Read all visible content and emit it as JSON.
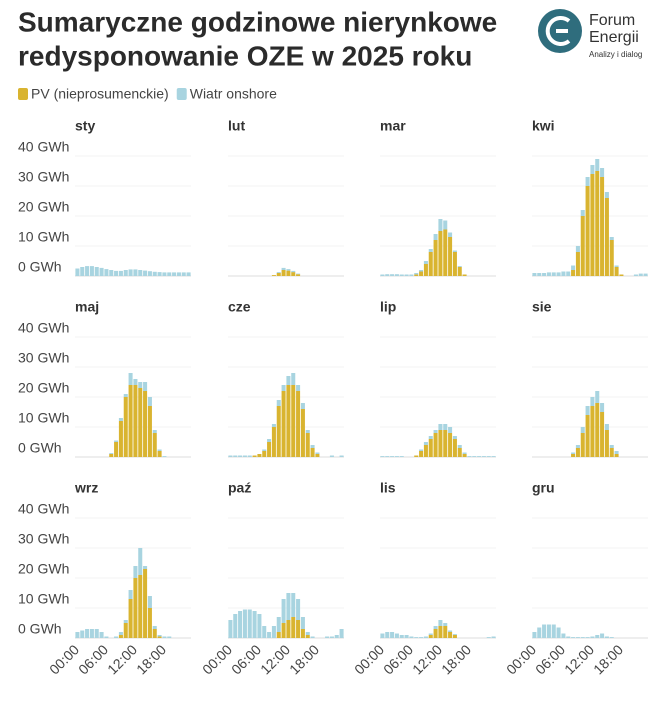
{
  "logo": [
    "Forum",
    "Energii",
    "Analizy i dialog"
  ],
  "chart_data": {
    "type": "bar",
    "stacked": true,
    "title": [
      "Sumaryczne godzinowe nierynkowe",
      "redysponowanie OZE w 2025 roku"
    ],
    "series": [
      {
        "name": "PV (nieprosumenckie)",
        "color": "#d9b430"
      },
      {
        "name": "Wiatr onshore",
        "color": "#a8d4e0"
      }
    ],
    "categories": [
      "00:00",
      null,
      null,
      null,
      null,
      null,
      "06:00",
      null,
      null,
      null,
      null,
      null,
      "12:00",
      null,
      null,
      null,
      null,
      null,
      "18:00",
      null,
      null,
      null,
      null,
      null
    ],
    "ylim": [
      0,
      40
    ],
    "yticks": [
      {
        "value": 0,
        "label": "0 GWh"
      },
      {
        "value": 10,
        "label": "10 GWh"
      },
      {
        "value": 20,
        "label": "20 GWh"
      },
      {
        "value": 30,
        "label": "30 GWh"
      },
      {
        "value": 40,
        "label": "40 GWh"
      }
    ],
    "panels": [
      {
        "title": "sty",
        "series": [
          {
            "values": [
              0,
              0,
              0,
              0,
              0,
              0,
              0,
              0,
              0,
              0,
              0,
              0,
              0,
              0,
              0,
              0,
              0,
              0,
              0,
              0,
              0,
              0,
              0,
              0
            ]
          },
          {
            "values": [
              2.5,
              3,
              3.3,
              3.3,
              3,
              2.7,
              2.3,
              2,
              1.7,
              1.7,
              2,
              2.2,
              2.2,
              2,
              1.8,
              1.6,
              1.4,
              1.3,
              1.2,
              1.2,
              1.2,
              1.2,
              1.2,
              1.2
            ]
          }
        ]
      },
      {
        "title": "lut",
        "series": [
          {
            "values": [
              0,
              0,
              0,
              0,
              0,
              0,
              0,
              0,
              0,
              0.3,
              1,
              2,
              1.8,
              1.3,
              0.6,
              0,
              0,
              0,
              0,
              0,
              0,
              0,
              0,
              0
            ]
          },
          {
            "values": [
              0,
              0,
              0,
              0,
              0,
              0,
              0,
              0,
              0,
              0,
              0.3,
              0.7,
              0.5,
              0.4,
              0.2,
              0,
              0,
              0,
              0,
              0,
              0,
              0,
              0,
              0
            ]
          }
        ]
      },
      {
        "title": "mar",
        "series": [
          {
            "values": [
              0,
              0,
              0,
              0,
              0,
              0,
              0,
              0.5,
              1.5,
              4,
              8,
              12,
              15,
              15.5,
              13,
              8,
              3,
              0.5,
              0,
              0,
              0,
              0,
              0,
              0
            ]
          },
          {
            "values": [
              0.5,
              0.6,
              0.6,
              0.6,
              0.5,
              0.5,
              0.5,
              0.5,
              0.5,
              1,
              1,
              2,
              4,
              3,
              1.5,
              0.5,
              0.3,
              0,
              0,
              0,
              0,
              0,
              0,
              0
            ]
          }
        ]
      },
      {
        "title": "kwi",
        "series": [
          {
            "values": [
              0,
              0,
              0,
              0,
              0,
              0,
              0,
              0,
              2,
              8,
              20,
              30,
              34,
              35,
              33,
              26,
              12,
              3,
              0.5,
              0,
              0,
              0,
              0,
              0
            ]
          },
          {
            "values": [
              1,
              1,
              1,
              1.2,
              1.2,
              1.2,
              1.5,
              1.5,
              1.5,
              2,
              2,
              3,
              3,
              4,
              3,
              2,
              1,
              0.5,
              0,
              0,
              0,
              0.5,
              0.8,
              0.8
            ]
          }
        ]
      },
      {
        "title": "maj",
        "series": [
          {
            "values": [
              0,
              0,
              0,
              0,
              0,
              0,
              0,
              1,
              5,
              12,
              20,
              24,
              24,
              23,
              22,
              17,
              8,
              2,
              0,
              0,
              0,
              0,
              0,
              0
            ]
          },
          {
            "values": [
              0,
              0,
              0,
              0,
              0,
              0,
              0,
              0.3,
              0.5,
              1,
              1,
              4,
              2,
              2,
              3,
              3,
              1,
              0.5,
              0.3,
              0,
              0,
              0,
              0,
              0
            ]
          }
        ]
      },
      {
        "title": "cze",
        "series": [
          {
            "values": [
              0,
              0,
              0,
              0,
              0,
              0.5,
              1,
              2,
              5,
              10,
              17,
              22,
              24,
              24,
              22,
              16,
              8,
              3,
              1,
              0,
              0,
              0,
              0,
              0
            ]
          },
          {
            "values": [
              0.5,
              0.5,
              0.5,
              0.5,
              0.5,
              0,
              0,
              0.5,
              1,
              1,
              2,
              2,
              3,
              4,
              2,
              2,
              1,
              1,
              0.5,
              0,
              0,
              0.5,
              0,
              0.5
            ]
          }
        ]
      },
      {
        "title": "lip",
        "series": [
          {
            "values": [
              0,
              0,
              0,
              0,
              0,
              0,
              0,
              0.5,
              2,
              4,
              6,
              8,
              9,
              9,
              8,
              6,
              3,
              1,
              0,
              0,
              0,
              0,
              0,
              0
            ]
          },
          {
            "values": [
              0.3,
              0.3,
              0.3,
              0.3,
              0.3,
              0,
              0,
              0,
              0.5,
              1,
              1,
              1,
              2,
              2,
              2,
              1,
              1,
              0.5,
              0.3,
              0.3,
              0.3,
              0.3,
              0.3,
              0.3
            ]
          }
        ]
      },
      {
        "title": "sie",
        "series": [
          {
            "values": [
              0,
              0,
              0,
              0,
              0,
              0,
              0,
              0,
              1,
              3,
              8,
              14,
              17,
              18,
              15,
              9,
              3,
              1,
              0,
              0,
              0,
              0,
              0,
              0
            ]
          },
          {
            "values": [
              0,
              0,
              0,
              0,
              0,
              0,
              0,
              0,
              0.5,
              1,
              2,
              3,
              3,
              4,
              3,
              2,
              1,
              1,
              0,
              0,
              0,
              0,
              0,
              0
            ]
          }
        ]
      },
      {
        "title": "wrz",
        "series": [
          {
            "values": [
              0,
              0,
              0,
              0,
              0,
              0,
              0,
              0,
              0,
              1,
              5,
              13,
              20,
              21,
              23,
              10,
              3,
              0.5,
              0,
              0,
              0,
              0,
              0,
              0
            ]
          },
          {
            "values": [
              2,
              2.5,
              3,
              3,
              3,
              2,
              0.5,
              0,
              0.5,
              1,
              1,
              3,
              4,
              9,
              1,
              4,
              1,
              0.5,
              0.5,
              0.5,
              0,
              0,
              0,
              0
            ]
          }
        ]
      },
      {
        "title": "paź",
        "series": [
          {
            "values": [
              0,
              0,
              0,
              0,
              0,
              0,
              0,
              0,
              0,
              0,
              2,
              5,
              6,
              7,
              6,
              3,
              1,
              0,
              0,
              0,
              0,
              0,
              0,
              0
            ]
          },
          {
            "values": [
              6,
              8,
              9,
              9.5,
              9.5,
              9,
              8,
              4,
              2,
              4,
              5,
              8,
              9,
              8,
              7,
              4,
              1,
              0.5,
              0,
              0,
              0.5,
              0.5,
              1,
              3
            ]
          }
        ]
      },
      {
        "title": "lis",
        "series": [
          {
            "values": [
              0,
              0,
              0,
              0,
              0,
              0,
              0,
              0,
              0,
              0,
              1,
              3,
              4,
              4,
              2,
              1,
              0,
              0,
              0,
              0,
              0,
              0,
              0,
              0
            ]
          },
          {
            "values": [
              1.5,
              2,
              2,
              1.5,
              1,
              1,
              0.5,
              0.3,
              0.3,
              0.5,
              0.5,
              1,
              2,
              1,
              0.5,
              0.3,
              0,
              0,
              0,
              0,
              0,
              0,
              0.3,
              0.5
            ]
          }
        ]
      },
      {
        "title": "gru",
        "series": [
          {
            "values": [
              0,
              0,
              0,
              0,
              0,
              0,
              0,
              0,
              0,
              0,
              0,
              0,
              0,
              0,
              0,
              0,
              0,
              0,
              0,
              0,
              0,
              0,
              0,
              0
            ]
          },
          {
            "values": [
              2,
              3.5,
              4.5,
              4.5,
              4.5,
              3.5,
              1.5,
              0.5,
              0.3,
              0.3,
              0.3,
              0.3,
              0.5,
              1,
              1.5,
              0.5,
              0.3,
              0,
              0,
              0,
              0,
              0,
              0,
              0
            ]
          }
        ]
      }
    ]
  }
}
